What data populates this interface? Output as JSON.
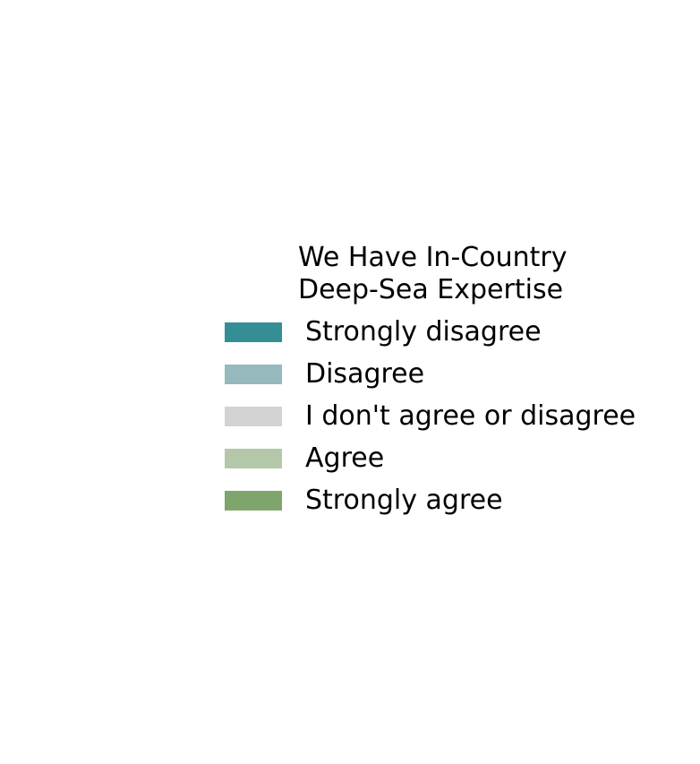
{
  "chart_data": {
    "type": "bar",
    "title": "",
    "legend": {
      "title_lines": [
        "We Have In-Country",
        "Deep-Sea Expertise"
      ],
      "placement": "center",
      "items": [
        {
          "label": "Strongly disagree",
          "color": "#348f94"
        },
        {
          "label": "Disagree",
          "color": "#95b9bd"
        },
        {
          "label": "I don't agree or disagree",
          "color": "#d3d3d3"
        },
        {
          "label": "Agree",
          "color": "#b4c8a9"
        },
        {
          "label": "Strongly agree",
          "color": "#7ea66c"
        }
      ]
    },
    "categories": [],
    "series": [
      {
        "name": "Strongly disagree",
        "values": []
      },
      {
        "name": "Disagree",
        "values": []
      },
      {
        "name": "I don't agree or disagree",
        "values": []
      },
      {
        "name": "Agree",
        "values": []
      },
      {
        "name": "Strongly agree",
        "values": []
      }
    ],
    "grid": false
  }
}
